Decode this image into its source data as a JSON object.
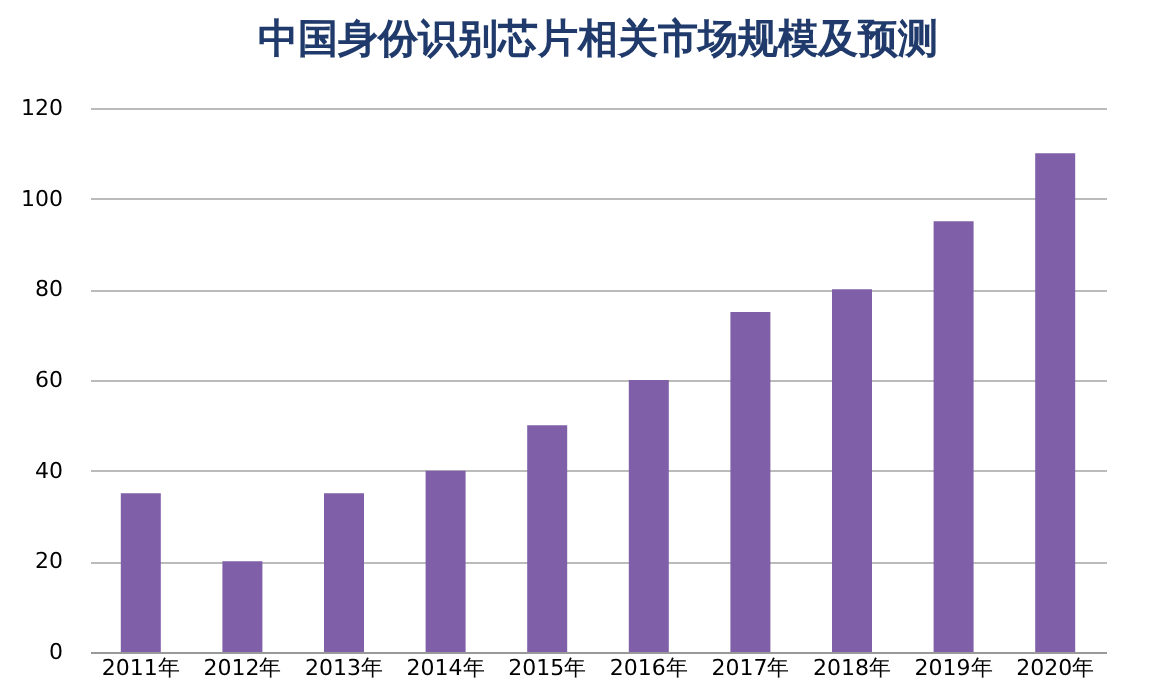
{
  "chart_data": {
    "type": "bar",
    "title": "中国身份识别芯片相关市场规模及预测",
    "categories": [
      "2011年",
      "2012年",
      "2013年",
      "2014年",
      "2015年",
      "2016年",
      "2017年",
      "2018年",
      "2019年",
      "2020年"
    ],
    "values": [
      35,
      20,
      35,
      40,
      50,
      60,
      75,
      80,
      95,
      110
    ],
    "color": "#7e5fa8",
    "ylim": [
      0,
      120
    ],
    "yticks": [
      0,
      20,
      40,
      60,
      80,
      100,
      120
    ],
    "grid": "y"
  }
}
